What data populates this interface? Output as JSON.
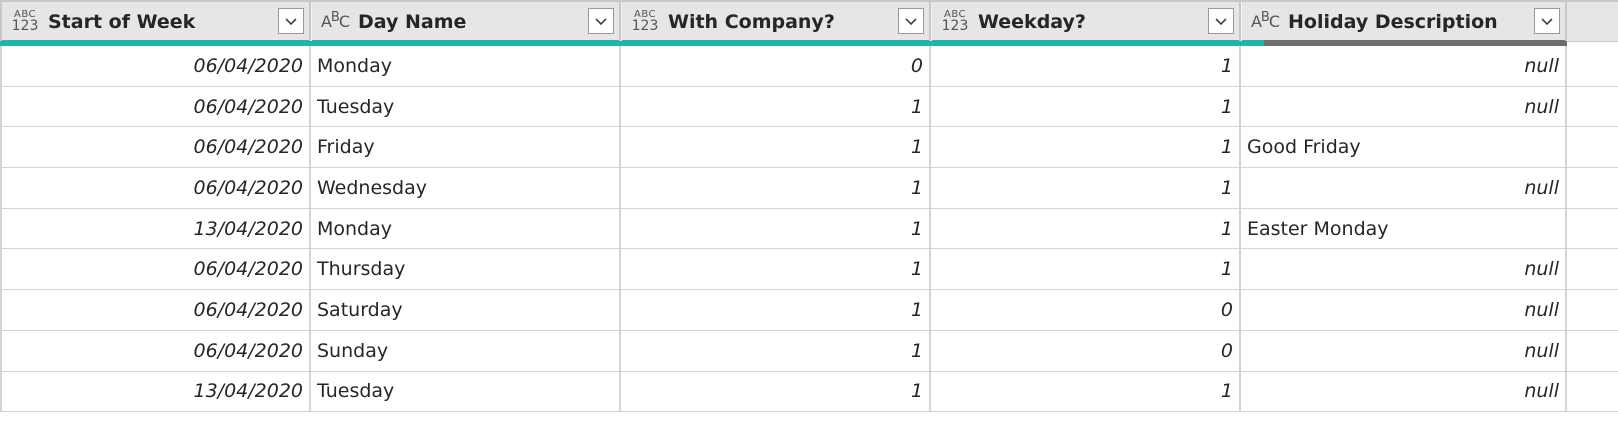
{
  "columns": [
    {
      "label": "Start of Week",
      "type_icon": "any-type-icon",
      "type_top": "ABC",
      "type_bottom": "123"
    },
    {
      "label": "Day Name",
      "type_icon": "text-type-icon",
      "type_text_a": "A",
      "type_text_b": "B",
      "type_text_c": "C"
    },
    {
      "label": "With Company?",
      "type_icon": "any-type-icon",
      "type_top": "ABC",
      "type_bottom": "123"
    },
    {
      "label": "Weekday?",
      "type_icon": "any-type-icon",
      "type_top": "ABC",
      "type_bottom": "123"
    },
    {
      "label": "Holiday Description",
      "type_icon": "text-type-icon",
      "type_text_a": "A",
      "type_text_b": "B",
      "type_text_c": "C"
    }
  ],
  "rows": [
    [
      "06/04/2020",
      "Monday",
      "0",
      "1",
      "null"
    ],
    [
      "06/04/2020",
      "Tuesday",
      "1",
      "1",
      "null"
    ],
    [
      "06/04/2020",
      "Friday",
      "1",
      "1",
      "Good Friday"
    ],
    [
      "06/04/2020",
      "Wednesday",
      "1",
      "1",
      "null"
    ],
    [
      "13/04/2020",
      "Monday",
      "1",
      "1",
      "Easter Monday"
    ],
    [
      "06/04/2020",
      "Thursday",
      "1",
      "1",
      "null"
    ],
    [
      "06/04/2020",
      "Saturday",
      "1",
      "0",
      "null"
    ],
    [
      "06/04/2020",
      "Sunday",
      "1",
      "0",
      "null"
    ],
    [
      "13/04/2020",
      "Tuesday",
      "1",
      "1",
      "null"
    ]
  ],
  "colors": {
    "quality_valid": "#1fb5a8",
    "quality_empty": "#6e6e6e"
  },
  "column_quality": [
    {
      "valid": 1.0,
      "empty": 0.0
    },
    {
      "valid": 1.0,
      "empty": 0.0
    },
    {
      "valid": 1.0,
      "empty": 0.0
    },
    {
      "valid": 1.0,
      "empty": 0.0
    },
    {
      "valid": 0.07,
      "empty": 0.93
    }
  ]
}
